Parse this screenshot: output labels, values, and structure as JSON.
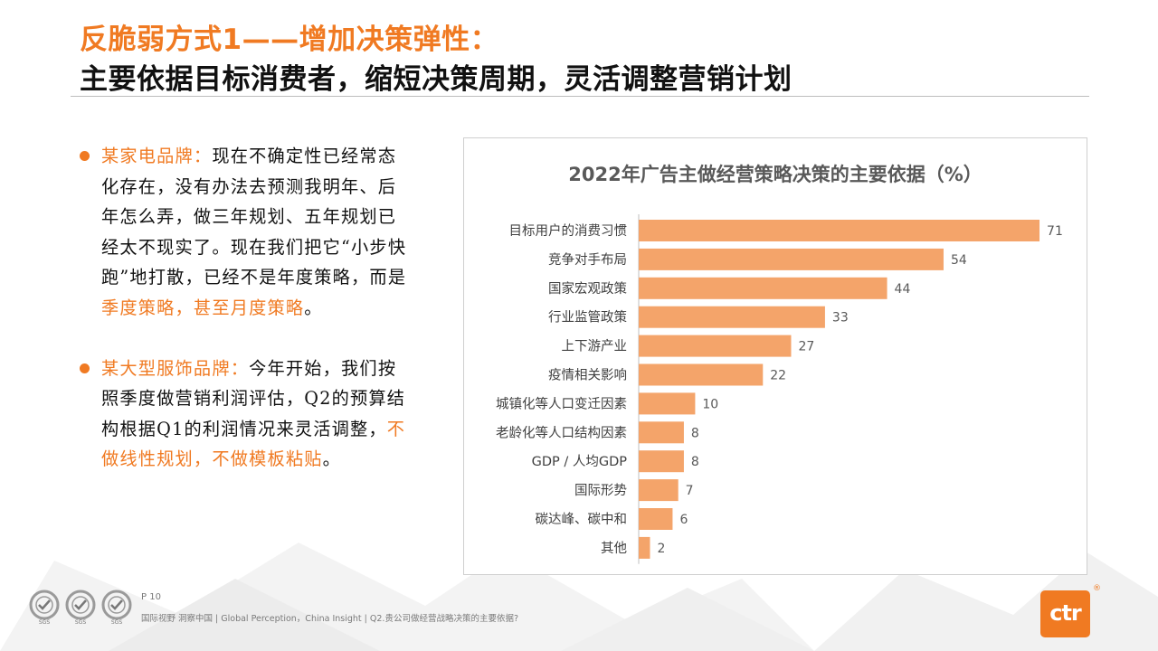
{
  "header": {
    "title_line1": "反脆弱方式1——增加决策弹性：",
    "title_line2": "主要依据目标消费者，缩短决策周期，灵活调整营销计划"
  },
  "bullets": [
    {
      "brand": "某家电品牌：",
      "text": "现在不确定性已经常态化存在，没有办法去预测我明年、后年怎么弄，做三年规划、五年规划已经太不现实了。现在我们把它“小步快跑”地打散，已经不是年度策略，而是",
      "highlight": "季度策略，甚至月度策略",
      "tail": "。"
    },
    {
      "brand": "某大型服饰品牌：",
      "text": "今年开始，我们按照季度做营销利润评估，Q2的预算结构根据Q1的利润情况来灵活调整，",
      "highlight": "不做线性规划，不做模板粘贴",
      "tail": "。"
    }
  ],
  "chart_data": {
    "type": "bar",
    "orientation": "horizontal",
    "title": "2022年广告主做经营策略决策的主要依据（%）",
    "categories": [
      "目标用户的消费习惯",
      "竞争对手布局",
      "国家宏观政策",
      "行业监管政策",
      "上下游产业",
      "疫情相关影响",
      "城镇化等人口变迁因素",
      "老龄化等人口结构因素",
      "GDP / 人均GDP",
      "国际形势",
      "碳达峰、碳中和",
      "其他"
    ],
    "values": [
      71,
      54,
      44,
      33,
      27,
      22,
      10,
      8,
      8,
      7,
      6,
      2
    ],
    "xlim": [
      0,
      75
    ],
    "bar_color": "#f4a46a",
    "grid": false,
    "legend": "none"
  },
  "footer": {
    "page": "P 10",
    "text": "国际视野  洞察中国 |  Global Perception，China Insight | Q2.贵公司做经营战略决策的主要依据?",
    "seal_label": "SGS",
    "logo_text": "ctr",
    "logo_mark": "®",
    "accent": "#f07a22"
  }
}
